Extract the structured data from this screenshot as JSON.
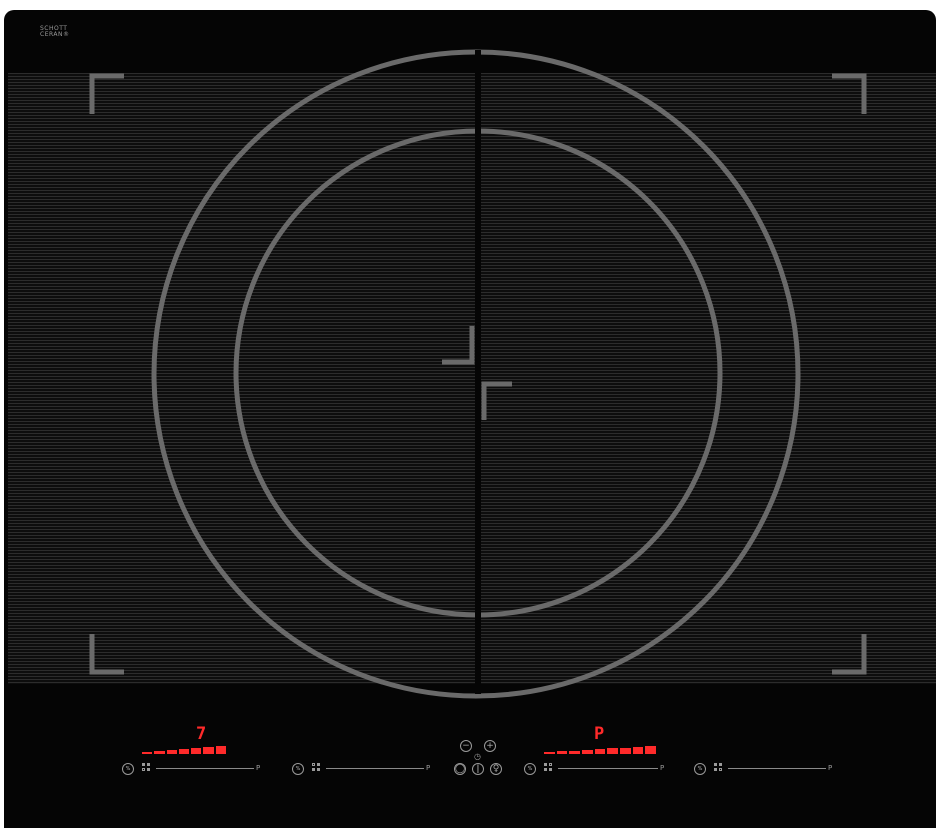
{
  "brand": {
    "line1": "SCHOTT",
    "line2": "CERAN®"
  },
  "left_zone": {
    "power_level": "7",
    "level_fraction": 1.0,
    "percent_icon_label": "%",
    "end_label": "P"
  },
  "left_zone_second": {
    "percent_icon_label": "%",
    "end_label": "P"
  },
  "right_zone": {
    "power_level": "P",
    "level_fraction": 1.0,
    "percent_icon_label": "%",
    "end_label": "P"
  },
  "right_zone_second": {
    "percent_icon_label": "%",
    "end_label": "P"
  },
  "timer": {
    "minus_icon": "minus-icon",
    "plus_icon": "plus-icon",
    "clock_icon": "clock-icon"
  },
  "main": {
    "power_icon": "power-icon",
    "lock_icon": "lock-icon",
    "bridge_icon": "bridge-icon"
  },
  "colors": {
    "display_red": "#ff2a2a",
    "glass": "#050505",
    "markings": "#6a6a6a"
  }
}
